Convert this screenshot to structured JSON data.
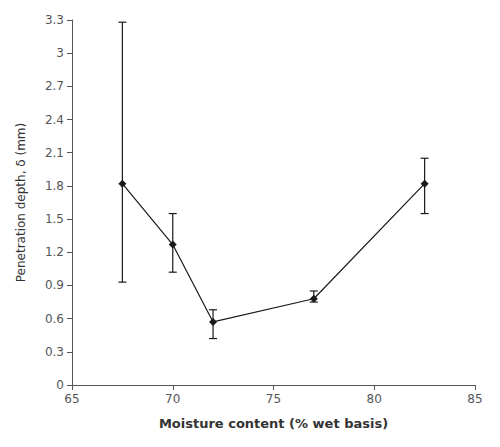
{
  "chart_data": {
    "type": "line",
    "xlabel": "Moisture content (% wet basis)",
    "ylabel": "Penetration depth, δ (mm)",
    "x": [
      67.5,
      70.0,
      72.0,
      77.0,
      82.5
    ],
    "values": [
      1.82,
      1.27,
      0.57,
      0.78,
      1.82
    ],
    "yerr_low": [
      0.89,
      0.25,
      0.15,
      0.03,
      0.27
    ],
    "yerr_high": [
      1.46,
      0.28,
      0.11,
      0.07,
      0.23
    ],
    "xlim": [
      65,
      85
    ],
    "ylim": [
      0,
      3.3
    ],
    "xticks": [
      65,
      70,
      75,
      80,
      85
    ],
    "yticks": [
      0,
      0.3,
      0.6,
      0.9,
      1.2,
      1.5,
      1.8,
      2.1,
      2.4,
      2.7,
      3,
      3.3
    ],
    "color": "#1a1a1a",
    "marker": "diamond",
    "grid": false
  }
}
